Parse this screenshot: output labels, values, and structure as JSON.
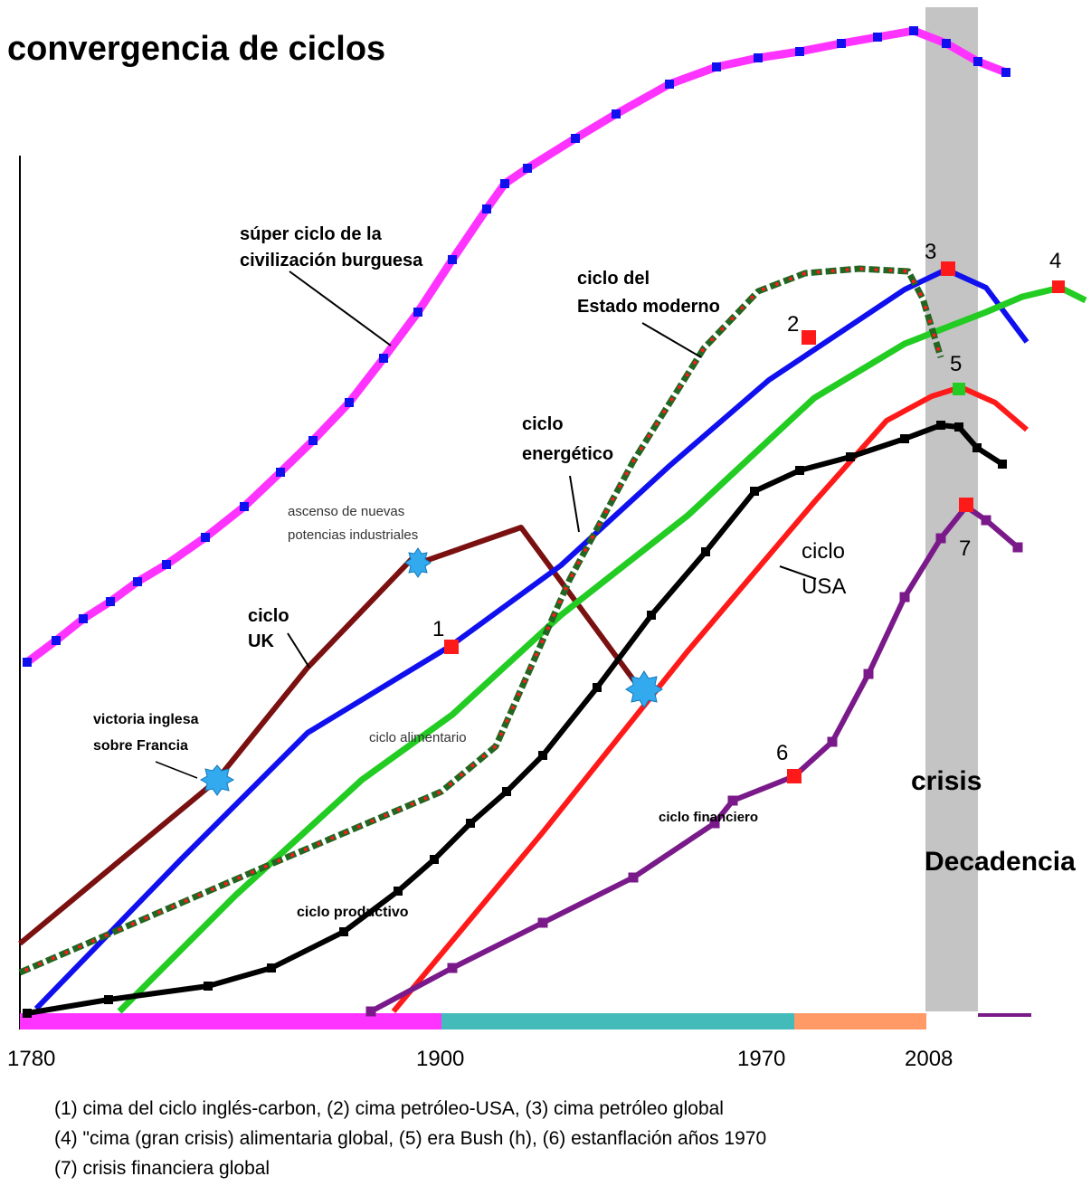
{
  "title": "convergencia de ciclos",
  "colors": {
    "super": "#ff33ff",
    "uk": "#7a1010",
    "blue": "#1010ee",
    "green": "#22cc22",
    "estado": "#226622",
    "red": "#ff1a1a",
    "black": "#000000",
    "purple": "#7a1a8a",
    "marker_red": "#ff1a1a",
    "burst": "#33aaee",
    "crisis_band": "#c4c4c4"
  },
  "labels": {
    "super": [
      "súper ciclo de la",
      "civilización burguesa"
    ],
    "estado": [
      "ciclo del",
      "Estado moderno"
    ],
    "energetico": [
      "ciclo",
      "energético"
    ],
    "uk": [
      "ciclo",
      "UK"
    ],
    "usa": [
      "ciclo",
      "USA"
    ],
    "nuevas": [
      "ascenso de nuevas",
      "potencias industriales"
    ],
    "victoria": [
      "victoria inglesa",
      "sobre Francia"
    ],
    "alimentario": "ciclo alimentario",
    "productivo": "ciclo productivo",
    "financiero": "ciclo financiero",
    "crisis": "crisis",
    "decadencia": "Decadencia"
  },
  "markers": [
    "1",
    "2",
    "3",
    "4",
    "5",
    "6",
    "7"
  ],
  "x_ticks": [
    "1780",
    "1900",
    "1970",
    "2008"
  ],
  "footnotes": [
    "(1) cima del ciclo inglés-carbon,   (2) cima petróleo-USA,   (3) cima petróleo global",
    "(4) \"cima (gran crisis) alimentaria global,   (5) era Bush (h), (6) estanflación años 1970",
    "(7) crisis financiera global"
  ]
}
